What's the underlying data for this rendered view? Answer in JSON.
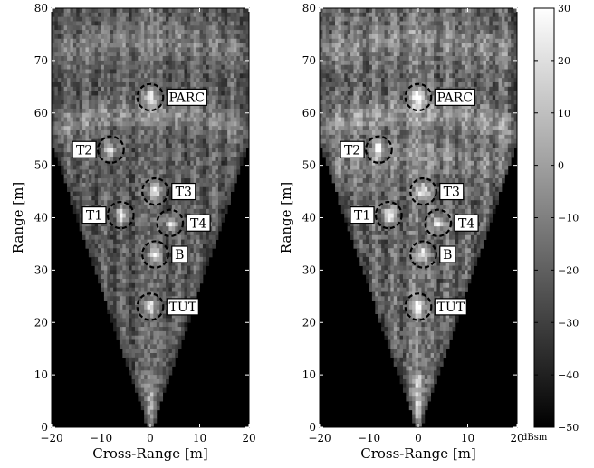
{
  "chart_data": [
    {
      "type": "heatmap",
      "name": "left",
      "xlabel": "Cross-Range [m]",
      "ylabel": "Range [m]",
      "xlim": [
        -20,
        20
      ],
      "ylim": [
        0,
        80
      ],
      "xticks": [
        -20,
        -10,
        0,
        10,
        20
      ],
      "yticks": [
        0,
        10,
        20,
        30,
        40,
        50,
        60,
        70,
        80
      ],
      "annotations": [
        {
          "label": "PARC",
          "x": 0,
          "y": 63,
          "r": 2.5
        },
        {
          "label": "T2",
          "x": -8,
          "y": 53,
          "r": 2.5
        },
        {
          "label": "T3",
          "x": 1,
          "y": 45,
          "r": 2.5
        },
        {
          "label": "T1",
          "x": -6,
          "y": 40.5,
          "r": 2.5
        },
        {
          "label": "T4",
          "x": 4,
          "y": 39,
          "r": 2.5
        },
        {
          "label": "B",
          "x": 1,
          "y": 33,
          "r": 2.5
        },
        {
          "label": "TUT",
          "x": 0,
          "y": 23,
          "r": 2.5
        }
      ]
    },
    {
      "type": "heatmap",
      "name": "right",
      "xlabel": "Cross-Range [m]",
      "ylabel": "Range [m]",
      "xlim": [
        -20,
        20
      ],
      "ylim": [
        0,
        80
      ],
      "xticks": [
        -20,
        -10,
        0,
        10,
        20
      ],
      "yticks": [
        0,
        10,
        20,
        30,
        40,
        50,
        60,
        70,
        80
      ],
      "annotations": [
        {
          "label": "PARC",
          "x": 0,
          "y": 63,
          "r": 2.5
        },
        {
          "label": "T2",
          "x": -8,
          "y": 53,
          "r": 2.5
        },
        {
          "label": "T3",
          "x": 1,
          "y": 45,
          "r": 2.5
        },
        {
          "label": "T1",
          "x": -6,
          "y": 40.5,
          "r": 2.5
        },
        {
          "label": "T4",
          "x": 4,
          "y": 39,
          "r": 2.5
        },
        {
          "label": "B",
          "x": 1,
          "y": 33,
          "r": 2.5
        },
        {
          "label": "TUT",
          "x": 0,
          "y": 23,
          "r": 2.5
        }
      ]
    }
  ],
  "colorbar": {
    "min": -50,
    "max": 30,
    "ticks": [
      -50,
      -40,
      -30,
      -20,
      -10,
      0,
      10,
      20,
      30
    ],
    "unit": "dBsm",
    "colormap": "gray"
  }
}
